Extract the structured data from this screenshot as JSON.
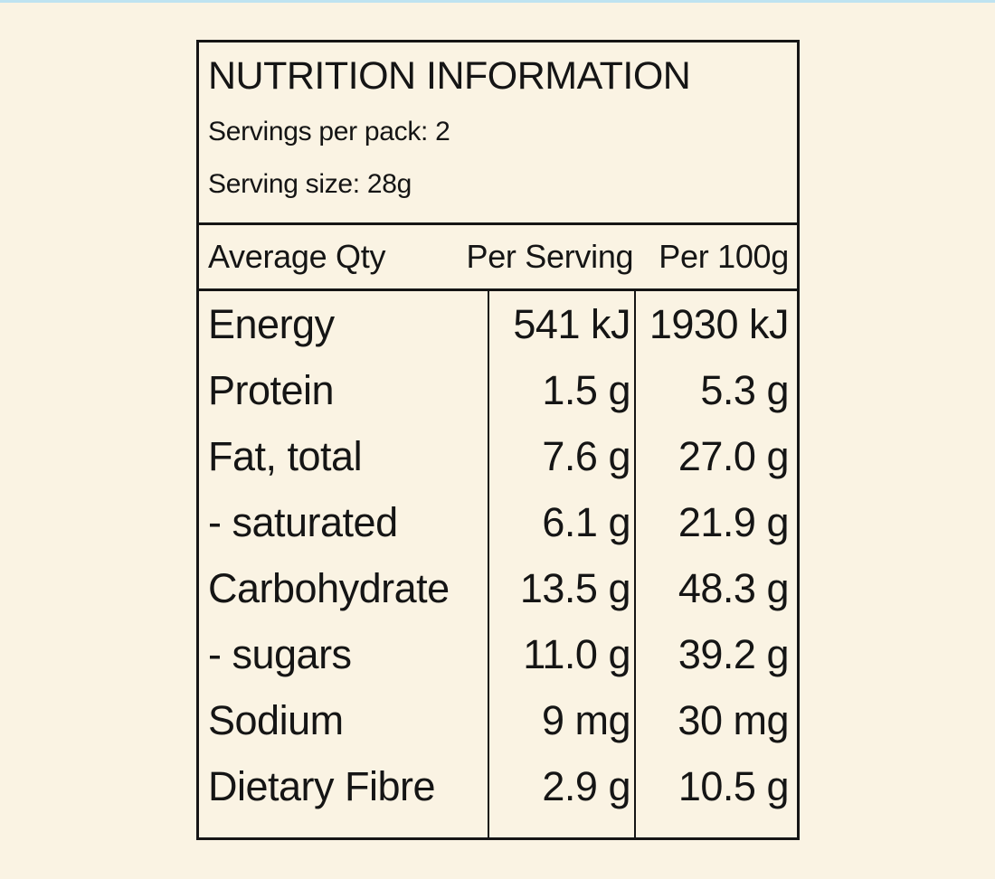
{
  "colors": {
    "page_background": "#FAF3E3",
    "panel_background": "#FAF3E3",
    "border_and_text": "#151515",
    "top_strip": "#BEE3F1"
  },
  "panel": {
    "title": "NUTRITION INFORMATION",
    "servings_per_pack": "Servings per pack: 2",
    "serving_size": "Serving size: 28g",
    "header": {
      "column1": "Average Qty",
      "column2": "Per Serving",
      "column3": "Per 100g"
    },
    "rows": [
      {
        "nutrient": "Energy",
        "per_serving": "541 kJ",
        "per_100g": "1930 kJ"
      },
      {
        "nutrient": "Protein",
        "per_serving": "1.5 g",
        "per_100g": "5.3 g"
      },
      {
        "nutrient": "Fat, total",
        "per_serving": "7.6 g",
        "per_100g": "27.0 g"
      },
      {
        "nutrient": "- saturated",
        "per_serving": "6.1 g",
        "per_100g": "21.9 g"
      },
      {
        "nutrient": "Carbohydrate",
        "per_serving": "13.5 g",
        "per_100g": "48.3 g"
      },
      {
        "nutrient": "- sugars",
        "per_serving": "11.0 g",
        "per_100g": "39.2 g"
      },
      {
        "nutrient": "Sodium",
        "per_serving": "9 mg",
        "per_100g": "30 mg"
      },
      {
        "nutrient": "Dietary Fibre",
        "per_serving": "2.9 g",
        "per_100g": "10.5 g"
      }
    ]
  }
}
